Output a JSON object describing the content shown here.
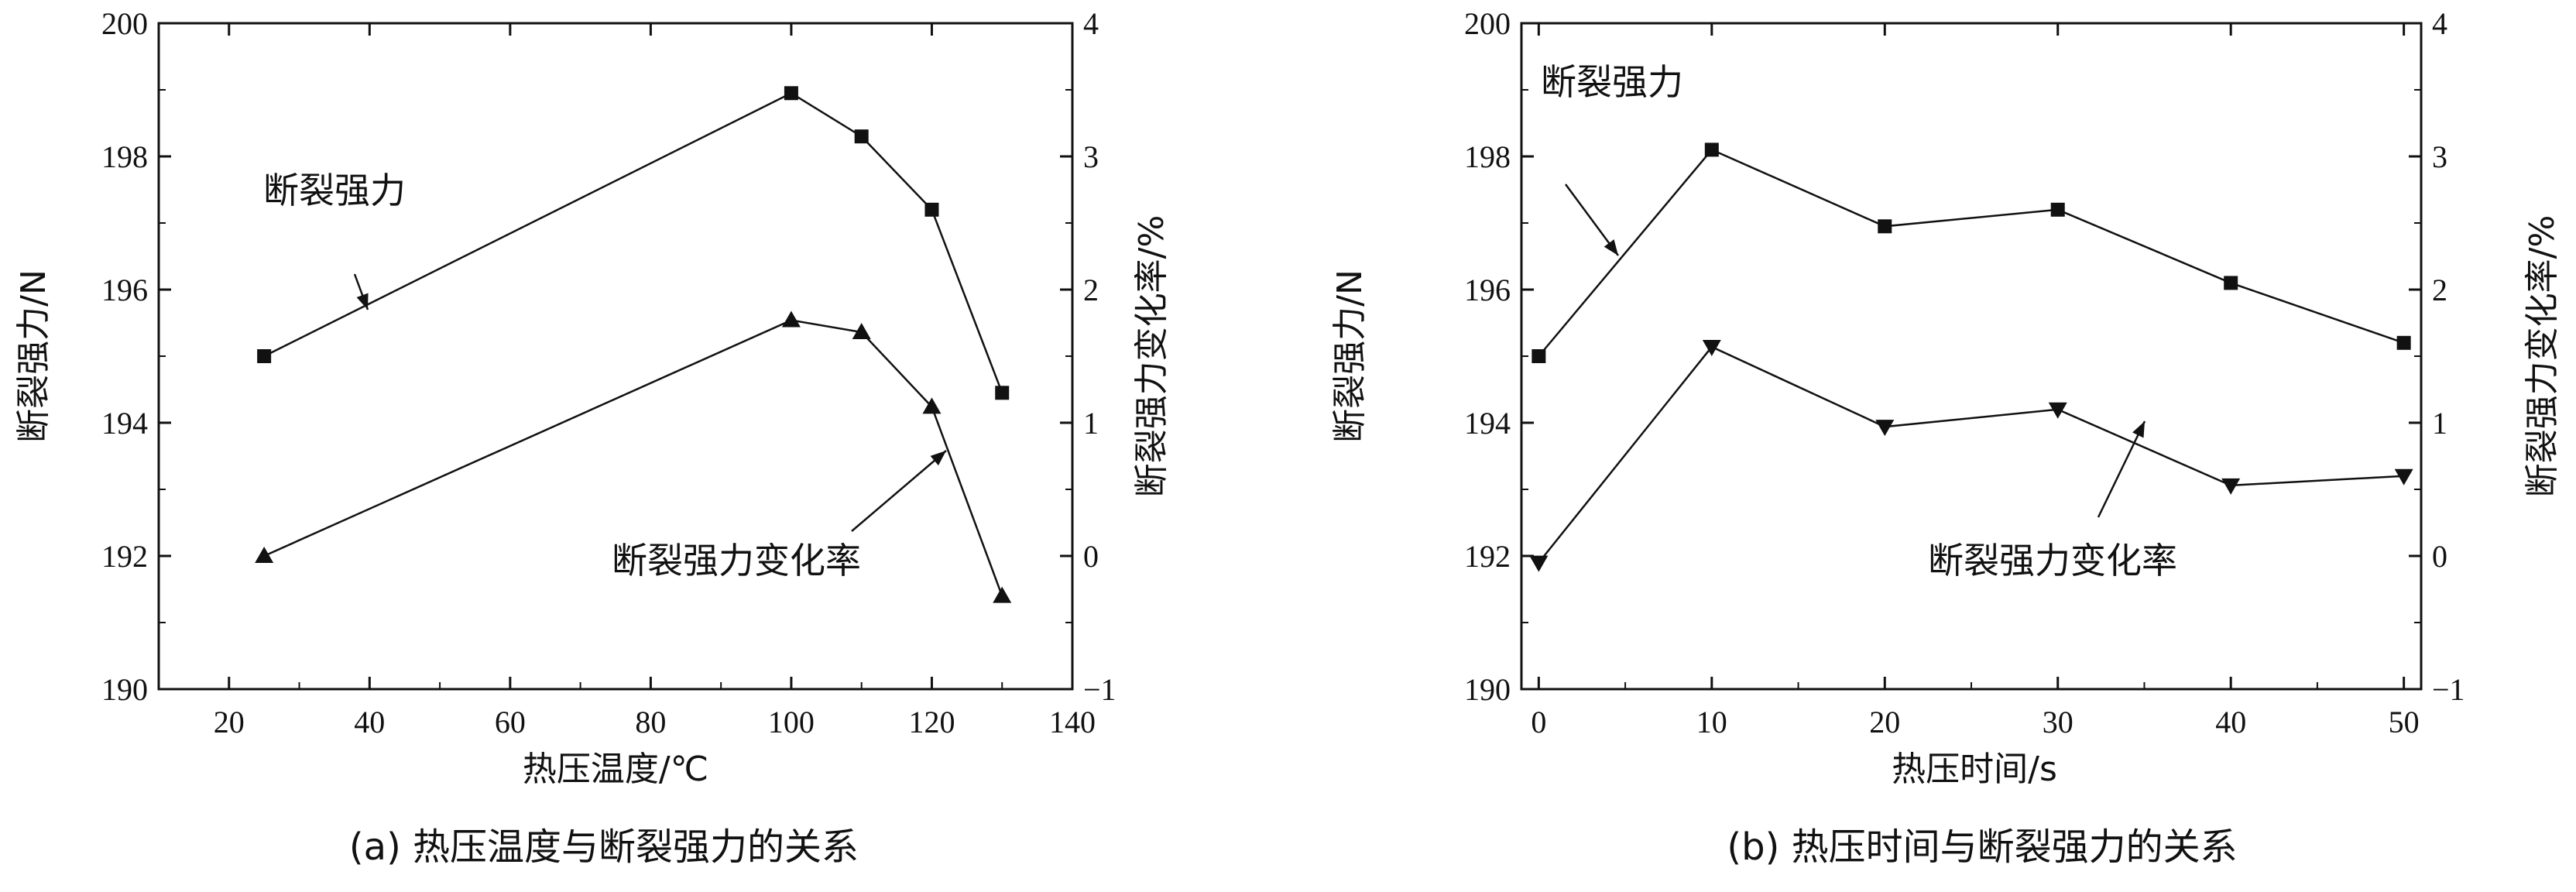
{
  "chart_data": [
    {
      "type": "line",
      "caption": "(a) 热压温度与断裂强力的关系",
      "xlabel": "热压温度/℃",
      "ylabel": "断裂强力/N",
      "y2label": "断裂强力变化率/%",
      "xlim": [
        10,
        140
      ],
      "ylim": [
        190,
        200
      ],
      "y2lim": [
        -1,
        4
      ],
      "xticks": [
        "20",
        "40",
        "60",
        "80",
        "100",
        "120",
        "140"
      ],
      "yticks": [
        "190",
        "192",
        "194",
        "196",
        "198",
        "200"
      ],
      "y2ticks": [
        "−1",
        "0",
        "1",
        "2",
        "3",
        "4"
      ],
      "grid": false,
      "x": [
        25,
        100,
        110,
        120,
        130
      ],
      "series": [
        {
          "name": "断裂强力",
          "axis": "left",
          "marker": "square",
          "values": [
            195.0,
            198.95,
            198.3,
            197.2,
            194.45
          ]
        },
        {
          "name": "断裂强力变化率",
          "axis": "right",
          "marker": "triangle-up",
          "values": [
            0.0,
            1.77,
            1.68,
            1.12,
            -0.3
          ]
        }
      ]
    },
    {
      "type": "line",
      "caption": "(b) 热压时间与断裂强力的关系",
      "xlabel": "热压时间/s",
      "ylabel": "断裂强力/N",
      "y2label": "断裂强力变化率/%",
      "xlim": [
        -1,
        51
      ],
      "ylim": [
        190,
        200
      ],
      "y2lim": [
        -1,
        4
      ],
      "xticks": [
        "0",
        "10",
        "20",
        "30",
        "40",
        "50"
      ],
      "yticks": [
        "190",
        "192",
        "194",
        "196",
        "198",
        "200"
      ],
      "y2ticks": [
        "−1",
        "0",
        "1",
        "2",
        "3",
        "4"
      ],
      "grid": false,
      "x": [
        0,
        10,
        20,
        30,
        40,
        50
      ],
      "series": [
        {
          "name": "断裂强力",
          "axis": "left",
          "marker": "square",
          "values": [
            195.0,
            198.1,
            196.95,
            197.2,
            196.1,
            195.2
          ]
        },
        {
          "name": "断裂强力变化率",
          "axis": "right",
          "marker": "triangle-down",
          "values": [
            -0.05,
            1.57,
            0.97,
            1.1,
            0.53,
            0.6
          ]
        }
      ]
    }
  ]
}
